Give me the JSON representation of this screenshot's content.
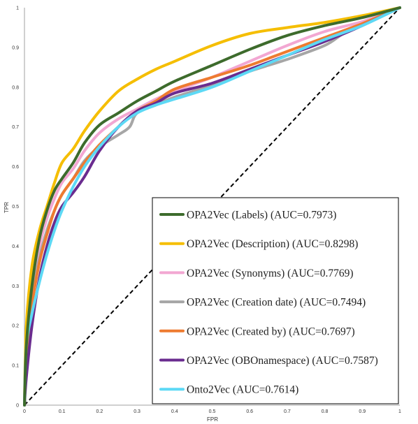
{
  "chart_data": {
    "type": "line",
    "title": "",
    "xlabel": "FPR",
    "ylabel": "TPR",
    "xlim": [
      0,
      1
    ],
    "ylim": [
      0,
      1
    ],
    "grid": false,
    "legend_placement": "bottom-right",
    "x_ticks": [
      "0",
      "0.1",
      "0.2",
      "0.3",
      "0.4",
      "0.5",
      "0.6",
      "0.7",
      "0.8",
      "0.9",
      "1"
    ],
    "y_ticks": [
      "0",
      "0.1",
      "0.2",
      "0.3",
      "0.4",
      "0.5",
      "0.6",
      "0.7",
      "0.8",
      "0.9",
      "1"
    ],
    "diagonal": {
      "points": [
        [
          0,
          0
        ],
        [
          1,
          1
        ]
      ],
      "color": "#000000",
      "style": "dashed"
    },
    "series": [
      {
        "name": "OPA2Vec (Labels) (AUC=0.7973)",
        "color": "#3d6b2c",
        "points": [
          [
            0,
            0
          ],
          [
            0.005,
            0.15
          ],
          [
            0.02,
            0.3
          ],
          [
            0.04,
            0.42
          ],
          [
            0.06,
            0.49
          ],
          [
            0.08,
            0.54
          ],
          [
            0.1,
            0.57
          ],
          [
            0.13,
            0.61
          ],
          [
            0.16,
            0.66
          ],
          [
            0.2,
            0.705
          ],
          [
            0.25,
            0.735
          ],
          [
            0.3,
            0.765
          ],
          [
            0.35,
            0.79
          ],
          [
            0.4,
            0.815
          ],
          [
            0.5,
            0.855
          ],
          [
            0.6,
            0.895
          ],
          [
            0.7,
            0.93
          ],
          [
            0.8,
            0.955
          ],
          [
            0.9,
            0.975
          ],
          [
            1,
            1
          ]
        ]
      },
      {
        "name": "OPA2Vec (Description) (AUC=0.8298)",
        "color": "#f5be00",
        "points": [
          [
            0,
            0
          ],
          [
            0.005,
            0.2
          ],
          [
            0.02,
            0.35
          ],
          [
            0.04,
            0.44
          ],
          [
            0.06,
            0.5
          ],
          [
            0.08,
            0.56
          ],
          [
            0.1,
            0.61
          ],
          [
            0.13,
            0.645
          ],
          [
            0.16,
            0.69
          ],
          [
            0.2,
            0.74
          ],
          [
            0.25,
            0.79
          ],
          [
            0.3,
            0.82
          ],
          [
            0.35,
            0.845
          ],
          [
            0.4,
            0.865
          ],
          [
            0.5,
            0.905
          ],
          [
            0.6,
            0.935
          ],
          [
            0.7,
            0.95
          ],
          [
            0.8,
            0.963
          ],
          [
            0.9,
            0.98
          ],
          [
            1,
            1
          ]
        ]
      },
      {
        "name": "OPA2Vec (Synonyms) (AUC=0.7769)",
        "color": "#f2a7d2",
        "points": [
          [
            0,
            0
          ],
          [
            0.005,
            0.13
          ],
          [
            0.02,
            0.28
          ],
          [
            0.04,
            0.4
          ],
          [
            0.06,
            0.47
          ],
          [
            0.08,
            0.52
          ],
          [
            0.1,
            0.56
          ],
          [
            0.13,
            0.595
          ],
          [
            0.16,
            0.64
          ],
          [
            0.2,
            0.685
          ],
          [
            0.25,
            0.72
          ],
          [
            0.3,
            0.745
          ],
          [
            0.35,
            0.77
          ],
          [
            0.4,
            0.79
          ],
          [
            0.5,
            0.825
          ],
          [
            0.6,
            0.865
          ],
          [
            0.7,
            0.905
          ],
          [
            0.8,
            0.94
          ],
          [
            0.9,
            0.965
          ],
          [
            1,
            1
          ]
        ]
      },
      {
        "name": "OPA2Vec (Creation date) (AUC=0.7494)",
        "color": "#a6a6a6",
        "points": [
          [
            0,
            0
          ],
          [
            0.005,
            0.12
          ],
          [
            0.02,
            0.26
          ],
          [
            0.04,
            0.37
          ],
          [
            0.06,
            0.44
          ],
          [
            0.08,
            0.49
          ],
          [
            0.1,
            0.53
          ],
          [
            0.13,
            0.57
          ],
          [
            0.16,
            0.615
          ],
          [
            0.2,
            0.65
          ],
          [
            0.25,
            0.68
          ],
          [
            0.28,
            0.7
          ],
          [
            0.3,
            0.735
          ],
          [
            0.35,
            0.755
          ],
          [
            0.4,
            0.775
          ],
          [
            0.5,
            0.805
          ],
          [
            0.6,
            0.84
          ],
          [
            0.7,
            0.87
          ],
          [
            0.8,
            0.905
          ],
          [
            0.85,
            0.935
          ],
          [
            0.9,
            0.955
          ],
          [
            1,
            1
          ]
        ]
      },
      {
        "name": "OPA2Vec (Created by) (AUC=0.7697)",
        "color": "#ee7b30",
        "points": [
          [
            0,
            0
          ],
          [
            0.005,
            0.1
          ],
          [
            0.02,
            0.25
          ],
          [
            0.04,
            0.36
          ],
          [
            0.06,
            0.43
          ],
          [
            0.08,
            0.49
          ],
          [
            0.1,
            0.53
          ],
          [
            0.13,
            0.57
          ],
          [
            0.16,
            0.61
          ],
          [
            0.2,
            0.655
          ],
          [
            0.25,
            0.7
          ],
          [
            0.3,
            0.74
          ],
          [
            0.35,
            0.765
          ],
          [
            0.4,
            0.795
          ],
          [
            0.5,
            0.825
          ],
          [
            0.6,
            0.855
          ],
          [
            0.7,
            0.89
          ],
          [
            0.8,
            0.925
          ],
          [
            0.9,
            0.96
          ],
          [
            1,
            1
          ]
        ]
      },
      {
        "name": "OPA2Vec (OBOnamespace) (AUC=0.7587)",
        "color": "#6a2c8f",
        "points": [
          [
            0,
            0
          ],
          [
            0.005,
            0.07
          ],
          [
            0.02,
            0.2
          ],
          [
            0.04,
            0.32
          ],
          [
            0.06,
            0.4
          ],
          [
            0.08,
            0.46
          ],
          [
            0.1,
            0.5
          ],
          [
            0.13,
            0.535
          ],
          [
            0.16,
            0.575
          ],
          [
            0.2,
            0.64
          ],
          [
            0.25,
            0.7
          ],
          [
            0.3,
            0.74
          ],
          [
            0.35,
            0.76
          ],
          [
            0.4,
            0.785
          ],
          [
            0.5,
            0.81
          ],
          [
            0.6,
            0.845
          ],
          [
            0.7,
            0.88
          ],
          [
            0.8,
            0.915
          ],
          [
            0.9,
            0.955
          ],
          [
            1,
            1
          ]
        ]
      },
      {
        "name": "Onto2Vec (AUC=0.7614)",
        "color": "#5dd9f5",
        "points": [
          [
            0,
            0
          ],
          [
            0.005,
            0.15
          ],
          [
            0.02,
            0.23
          ],
          [
            0.04,
            0.31
          ],
          [
            0.06,
            0.38
          ],
          [
            0.08,
            0.44
          ],
          [
            0.1,
            0.49
          ],
          [
            0.13,
            0.55
          ],
          [
            0.16,
            0.6
          ],
          [
            0.2,
            0.65
          ],
          [
            0.25,
            0.7
          ],
          [
            0.3,
            0.735
          ],
          [
            0.35,
            0.755
          ],
          [
            0.4,
            0.77
          ],
          [
            0.5,
            0.8
          ],
          [
            0.6,
            0.84
          ],
          [
            0.7,
            0.88
          ],
          [
            0.8,
            0.92
          ],
          [
            0.9,
            0.955
          ],
          [
            1,
            1
          ]
        ]
      }
    ]
  }
}
